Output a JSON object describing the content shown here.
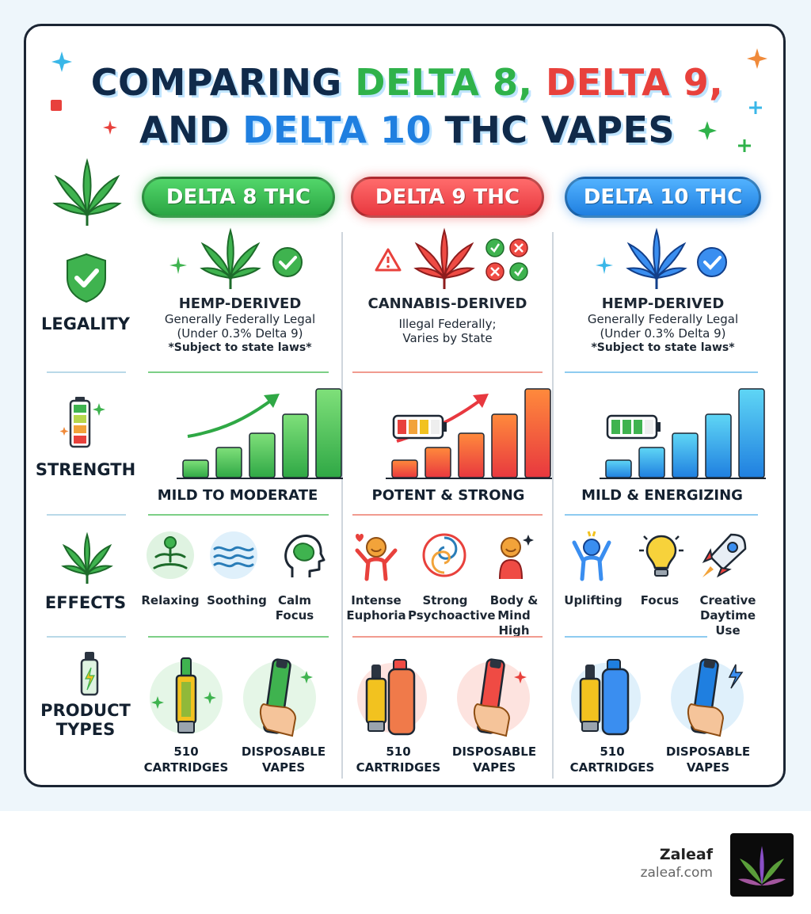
{
  "title": {
    "line1_parts": [
      {
        "text": "COMPARING ",
        "color": "#102a4a"
      },
      {
        "text": "DELTA 8, ",
        "color": "#2fb24a"
      },
      {
        "text": "DELTA 9,",
        "color": "#e8413c"
      }
    ],
    "line2_parts": [
      {
        "text": "AND ",
        "color": "#102a4a"
      },
      {
        "text": "DELTA 10 ",
        "color": "#1f7fe0"
      },
      {
        "text": "THC VAPES",
        "color": "#102a4a"
      }
    ]
  },
  "columns": [
    {
      "header": "DELTA 8 THC",
      "accent": "#2fb24a",
      "legality": {
        "title": "HEMP-DERIVED",
        "lines": [
          "Generally Federally Legal",
          "(Under 0.3% Delta 9)"
        ],
        "note": "*Subject to state laws*"
      },
      "strength": "MILD TO MODERATE",
      "effects": [
        "Relaxing",
        "Soothing",
        "Calm Focus"
      ],
      "products": [
        "510 CARTRIDGES",
        "DISPOSABLE VAPES"
      ]
    },
    {
      "header": "DELTA 9 THC",
      "accent": "#e8413c",
      "legality": {
        "title": "CANNABIS-DERIVED",
        "lines": [
          "Illegal Federally;",
          "Varies by State"
        ],
        "note": ""
      },
      "strength": "POTENT & STRONG",
      "effects": [
        "Intense Euphoria",
        "Strong Psychoactive",
        "Body & Mind High"
      ],
      "products": [
        "510 CARTRIDGES",
        "DISPOSABLE VAPES"
      ]
    },
    {
      "header": "DELTA 10 THC",
      "accent": "#1f7fe0",
      "legality": {
        "title": "HEMP-DERIVED",
        "lines": [
          "Generally Federally Legal",
          "(Under 0.3% Delta 9)"
        ],
        "note": "*Subject to state laws*"
      },
      "strength": "MILD & ENERGIZING",
      "effects": [
        "Uplifting",
        "Focus",
        "Creative Daytime Use"
      ],
      "products": [
        "510 CARTRIDGES",
        "DISPOSABLE VAPES"
      ]
    }
  ],
  "row_labels": {
    "legality": "LEGALITY",
    "strength": "STRENGTH",
    "effects": "EFFECTS",
    "products_line1": "PRODUCT",
    "products_line2": "TYPES"
  },
  "icons": {
    "legality": "shield-check-icon",
    "strength": "battery-icon",
    "effects": "cannabis-leaf-icon",
    "products": "vape-pen-icon"
  },
  "footer": {
    "brand": "Zaleaf",
    "url": "zaleaf.com"
  }
}
